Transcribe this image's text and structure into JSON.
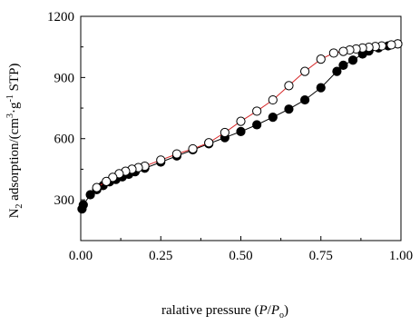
{
  "chart_data": {
    "type": "scatter",
    "xlabel": {
      "prefix": "ralative pressure (",
      "p": "P",
      "slash": "/",
      "p0": "P",
      "p0_sub": "o",
      "suffix": ")"
    },
    "ylabel": {
      "n": "N",
      "n_sub": "2",
      "mid": " adsorption/(cm",
      "sup1": "3",
      "dot": "·g",
      "sup2": "-1",
      "suffix": " STP)"
    },
    "xlim": [
      0.0,
      1.0
    ],
    "ylim": [
      100,
      1200
    ],
    "x_ticks": [
      "0.00",
      "0.25",
      "0.50",
      "0.75",
      "1.00"
    ],
    "x_tick_values": [
      0.0,
      0.25,
      0.5,
      0.75,
      1.0
    ],
    "y_ticks": [
      "300",
      "600",
      "900",
      "1200"
    ],
    "y_tick_values": [
      300,
      600,
      900,
      1200
    ],
    "grid": false,
    "series": [
      {
        "marker": "filled-circle",
        "line_color": "#000000",
        "marker_color": "#000000",
        "x": [
          0.004,
          0.008,
          0.03,
          0.05,
          0.07,
          0.09,
          0.11,
          0.13,
          0.15,
          0.17,
          0.2,
          0.25,
          0.3,
          0.35,
          0.4,
          0.45,
          0.5,
          0.55,
          0.6,
          0.65,
          0.7,
          0.75,
          0.8,
          0.82,
          0.85,
          0.88,
          0.9,
          0.93,
          0.96,
          0.99
        ],
        "y": [
          255,
          275,
          325,
          350,
          370,
          388,
          400,
          413,
          425,
          438,
          455,
          485,
          515,
          545,
          575,
          605,
          635,
          668,
          705,
          745,
          790,
          850,
          930,
          960,
          985,
          1015,
          1030,
          1045,
          1055,
          1065
        ]
      },
      {
        "marker": "open-circle",
        "line_color": "#d62728",
        "marker_color": "#000000",
        "x": [
          0.99,
          0.97,
          0.94,
          0.92,
          0.9,
          0.88,
          0.86,
          0.84,
          0.82,
          0.79,
          0.75,
          0.7,
          0.65,
          0.6,
          0.55,
          0.5,
          0.45,
          0.4,
          0.35,
          0.3,
          0.25,
          0.2,
          0.18,
          0.16,
          0.14,
          0.12,
          0.1,
          0.08,
          0.05
        ],
        "y": [
          1065,
          1060,
          1055,
          1052,
          1048,
          1045,
          1040,
          1035,
          1028,
          1020,
          990,
          930,
          860,
          790,
          735,
          685,
          630,
          580,
          550,
          525,
          495,
          465,
          458,
          450,
          440,
          428,
          410,
          390,
          360
        ]
      }
    ]
  }
}
